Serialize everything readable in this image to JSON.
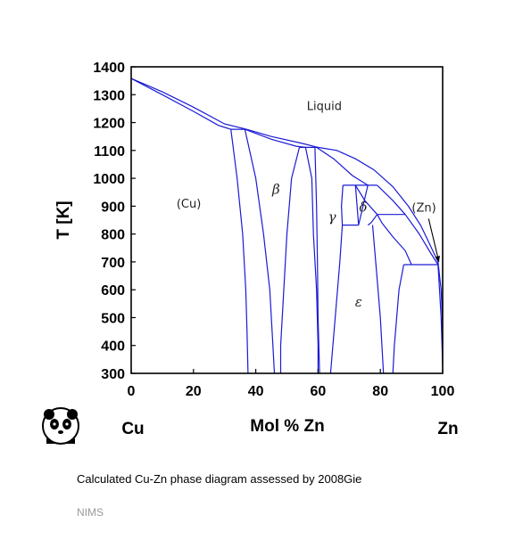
{
  "chart_data": {
    "type": "diagram",
    "ylabel": "T [K]",
    "xlabel": "Mol % Zn",
    "xlim": [
      0,
      100
    ],
    "ylim": [
      300,
      1400
    ],
    "x_ticks": [
      0,
      20,
      40,
      60,
      80,
      100
    ],
    "y_ticks": [
      300,
      400,
      500,
      600,
      700,
      800,
      900,
      1000,
      1100,
      1200,
      1300,
      1400
    ],
    "endpoint_labels": {
      "left": "Cu",
      "right": "Zn"
    },
    "phase_labels": [
      {
        "text": "Liquid",
        "x": 62,
        "y": 1245,
        "greek": false
      },
      {
        "text": "(Cu)",
        "x": 18.5,
        "y": 895,
        "greek": false
      },
      {
        "text": "β",
        "x": 46.5,
        "y": 945,
        "greek": true
      },
      {
        "text": "γ",
        "x": 64.5,
        "y": 845,
        "greek": true
      },
      {
        "text": "δ",
        "x": 74.5,
        "y": 880,
        "greek": true
      },
      {
        "text": "ε",
        "x": 73,
        "y": 540,
        "greek": true
      },
      {
        "text": "(Zn)",
        "x": 94,
        "y": 880,
        "greek": false
      }
    ],
    "line_color": "#1a1ad6",
    "boundaries": [
      [
        [
          0,
          1358
        ],
        [
          10,
          1310
        ],
        [
          20,
          1255
        ],
        [
          30,
          1195
        ],
        [
          37,
          1176
        ]
      ],
      [
        [
          0,
          1358
        ],
        [
          10,
          1300
        ],
        [
          20,
          1240
        ],
        [
          28,
          1190
        ],
        [
          32,
          1176
        ]
      ],
      [
        [
          32,
          1176
        ],
        [
          37,
          1176
        ]
      ],
      [
        [
          37,
          1176
        ],
        [
          45,
          1150
        ],
        [
          55,
          1125
        ],
        [
          60,
          1111
        ]
      ],
      [
        [
          36.5,
          1176
        ],
        [
          45,
          1140
        ],
        [
          53,
          1115
        ],
        [
          56,
          1111
        ]
      ],
      [
        [
          54,
          1111
        ],
        [
          60,
          1111
        ]
      ],
      [
        [
          32,
          1176
        ],
        [
          34,
          1000
        ],
        [
          35.8,
          800
        ],
        [
          36.8,
          600
        ],
        [
          37.2,
          450
        ],
        [
          37.5,
          300
        ]
      ],
      [
        [
          36.5,
          1176
        ],
        [
          40,
          1000
        ],
        [
          42.5,
          800
        ],
        [
          44.5,
          600
        ],
        [
          45.5,
          400
        ],
        [
          46,
          300
        ]
      ],
      [
        [
          54,
          1111
        ],
        [
          51.5,
          1000
        ],
        [
          50,
          800
        ],
        [
          49,
          600
        ],
        [
          48,
          400
        ],
        [
          48,
          300
        ]
      ],
      [
        [
          56,
          1111
        ],
        [
          58,
          1000
        ],
        [
          58.5,
          800
        ],
        [
          59.5,
          600
        ],
        [
          60,
          400
        ],
        [
          60,
          300
        ]
      ],
      [
        [
          59,
          1111
        ],
        [
          59.5,
          900
        ],
        [
          59.8,
          700
        ],
        [
          60,
          500
        ],
        [
          60.5,
          300
        ]
      ],
      [
        [
          59.5,
          1111
        ],
        [
          65,
          1070
        ],
        [
          71,
          1010
        ],
        [
          76,
          975
        ]
      ],
      [
        [
          60,
          1111
        ],
        [
          66,
          1100
        ],
        [
          72,
          1070
        ],
        [
          78,
          1030
        ],
        [
          84,
          970
        ],
        [
          89,
          900
        ],
        [
          93,
          830
        ],
        [
          96,
          760
        ],
        [
          98.5,
          700
        ],
        [
          99.5,
          600
        ],
        [
          99.9,
          500
        ],
        [
          100,
          420
        ]
      ],
      [
        [
          68,
          975
        ],
        [
          79,
          975
        ]
      ],
      [
        [
          68,
          975
        ],
        [
          67.5,
          900
        ],
        [
          67.8,
          832
        ]
      ],
      [
        [
          67.8,
          832
        ],
        [
          67,
          700
        ],
        [
          65.5,
          500
        ],
        [
          64,
          300
        ]
      ],
      [
        [
          67.8,
          832
        ],
        [
          73,
          832
        ]
      ],
      [
        [
          73,
          832
        ],
        [
          72,
          975
        ]
      ],
      [
        [
          73,
          832
        ],
        [
          76,
          975
        ]
      ],
      [
        [
          72,
          975
        ],
        [
          75,
          920
        ],
        [
          79,
          870
        ]
      ],
      [
        [
          79,
          975
        ],
        [
          84,
          920
        ],
        [
          88,
          870
        ]
      ],
      [
        [
          79,
          870
        ],
        [
          88,
          870
        ]
      ],
      [
        [
          79,
          870
        ],
        [
          77,
          840
        ],
        [
          76,
          832
        ]
      ],
      [
        [
          88,
          870
        ],
        [
          92.5,
          800
        ],
        [
          96,
          735
        ],
        [
          98.5,
          690
        ]
      ],
      [
        [
          79,
          870
        ],
        [
          80.5,
          840
        ],
        [
          84,
          790
        ],
        [
          88,
          740
        ],
        [
          90,
          690
        ]
      ],
      [
        [
          87.5,
          690
        ],
        [
          98.5,
          690
        ]
      ],
      [
        [
          87.5,
          690
        ],
        [
          86,
          600
        ],
        [
          84.5,
          400
        ],
        [
          84,
          300
        ]
      ],
      [
        [
          77.5,
          832
        ],
        [
          78.5,
          700
        ],
        [
          80,
          500
        ],
        [
          81,
          300
        ]
      ],
      [
        [
          98.5,
          690
        ],
        [
          99,
          600
        ],
        [
          99.5,
          500
        ],
        [
          99.8,
          400
        ],
        [
          100,
          320
        ]
      ]
    ],
    "arrow": {
      "from": [
        95.5,
        855
      ],
      "to": [
        98.8,
        700
      ]
    }
  },
  "logo": {
    "name": "panda-icon"
  },
  "caption": "Calculated Cu-Zn phase diagram assessed by 2008Gie",
  "credit": "NIMS"
}
